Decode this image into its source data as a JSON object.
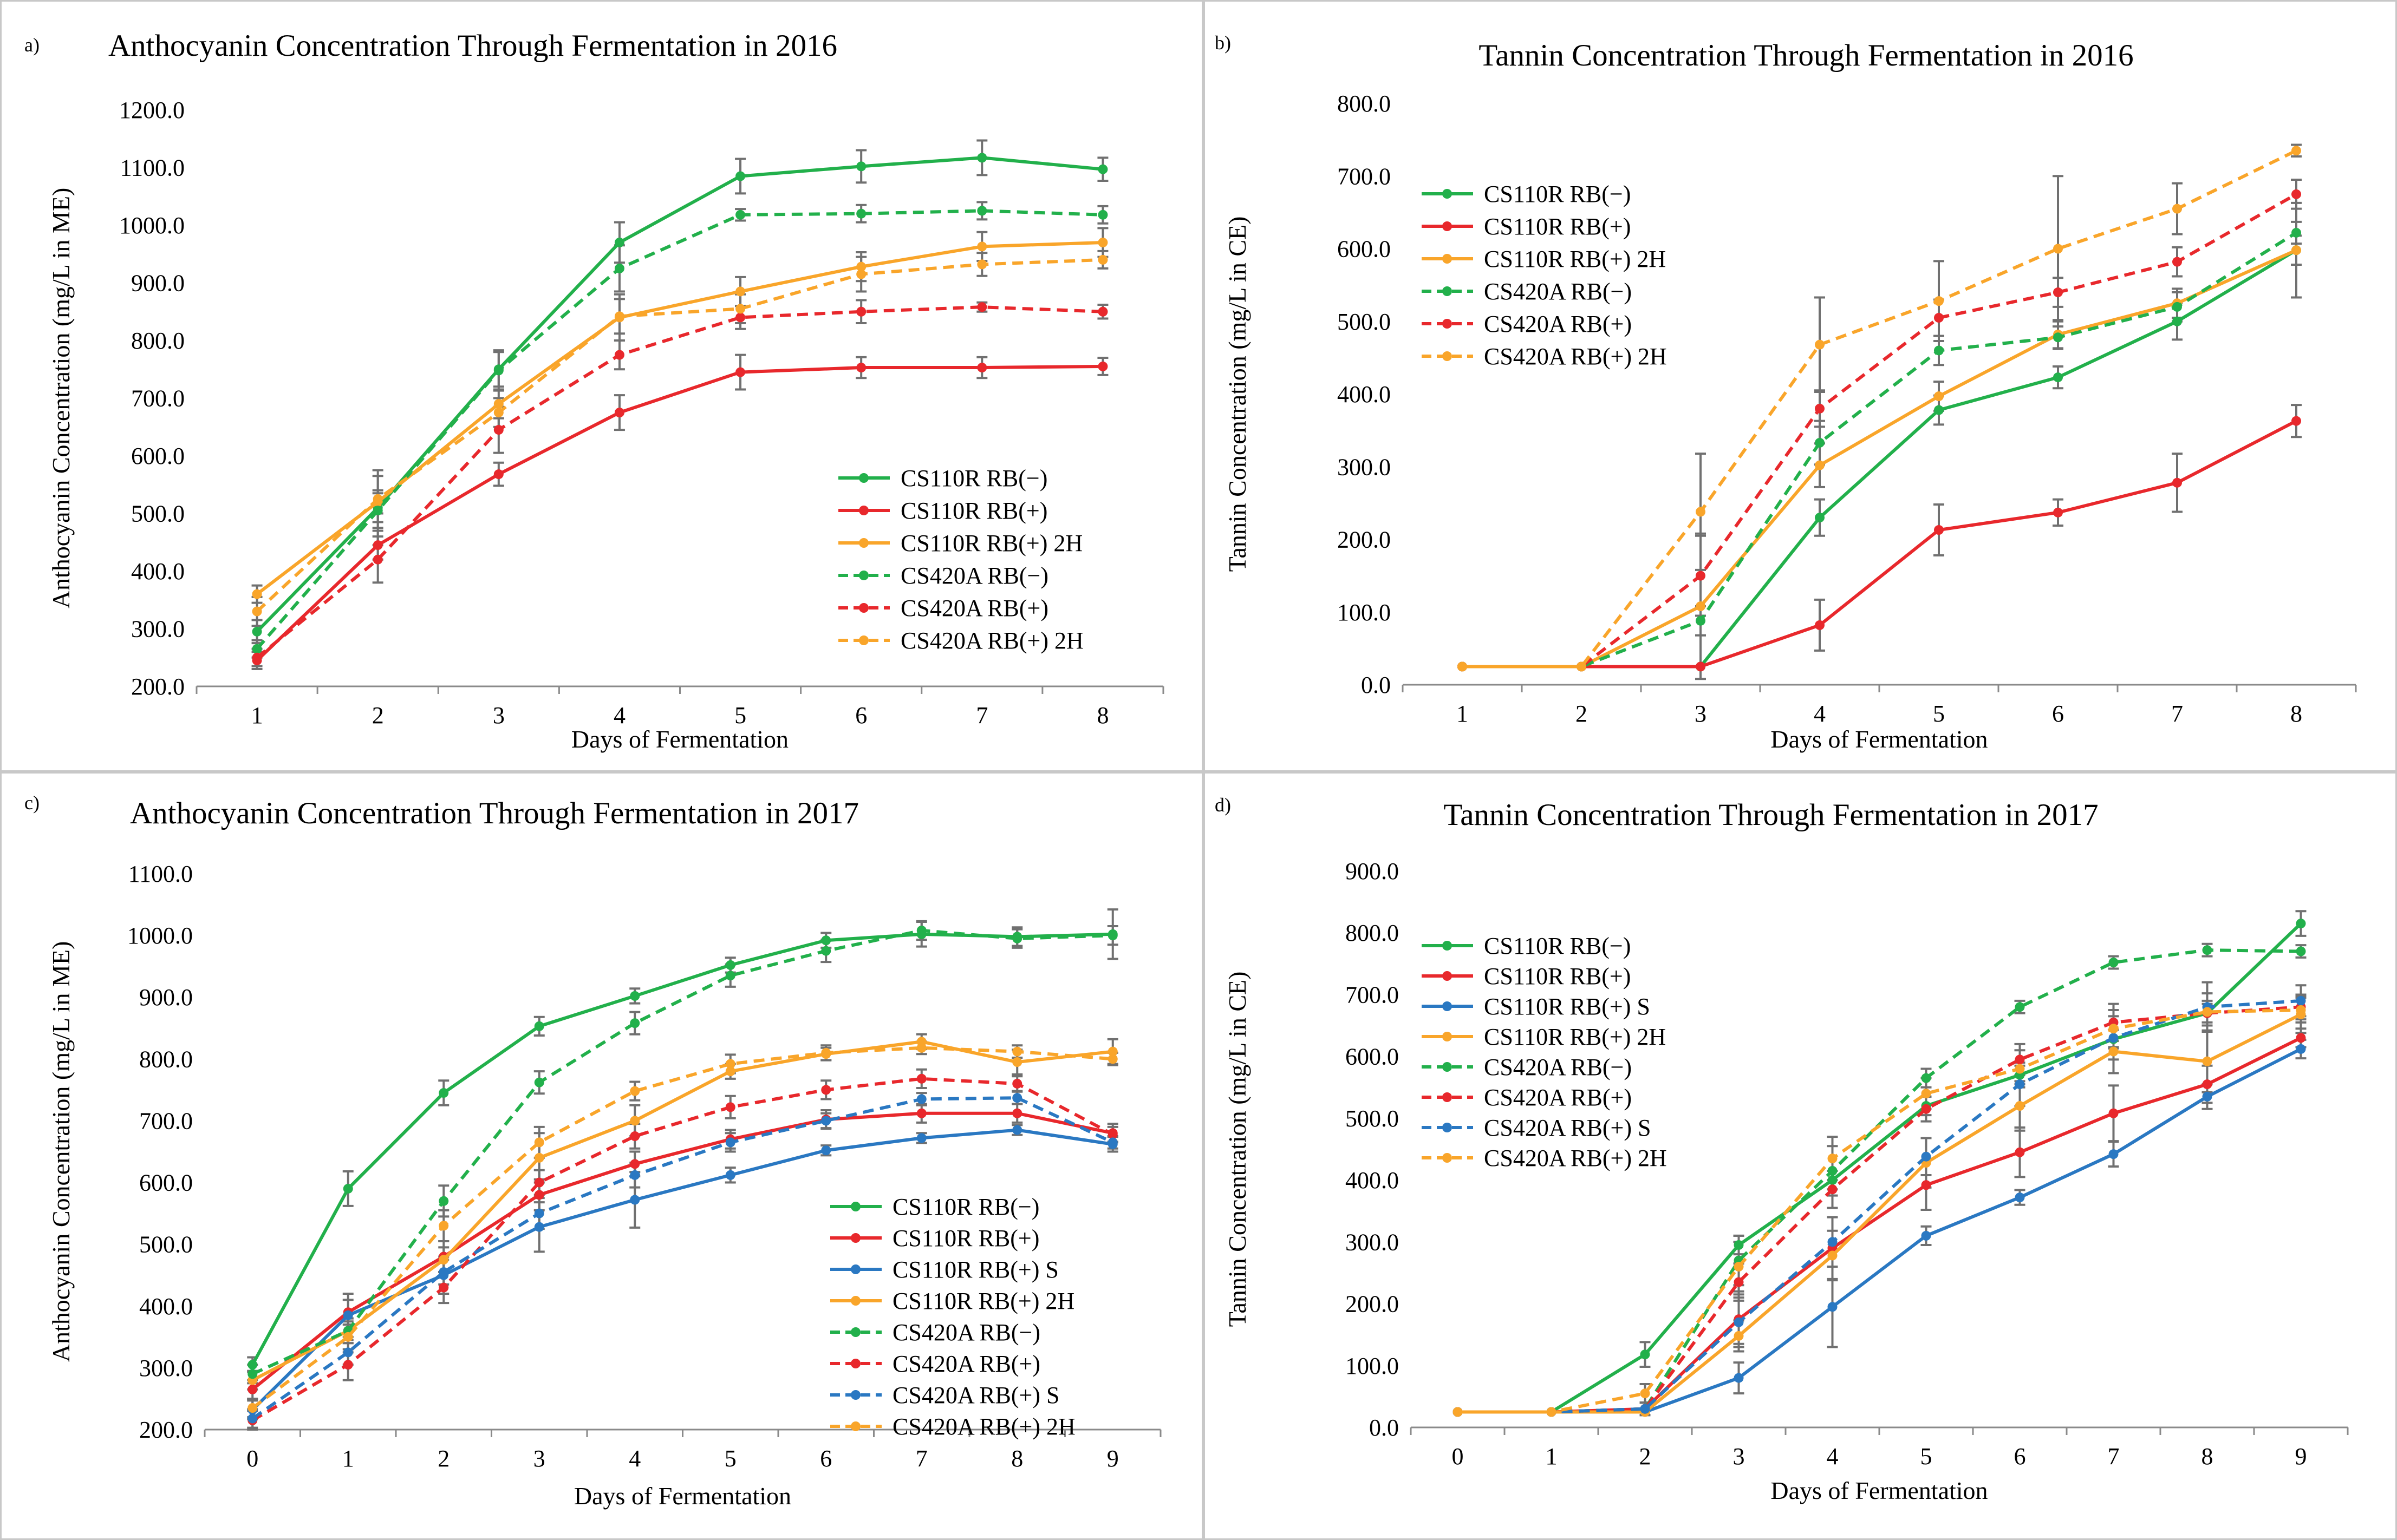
{
  "series_styles": {
    "CS110R RB(−)": {
      "color": "#22b04b",
      "dash": false
    },
    "CS110R RB(+)": {
      "color": "#e8282c",
      "dash": false
    },
    "CS110R RB(+) S": {
      "color": "#2a78c2",
      "dash": false
    },
    "CS110R RB(+) 2H": {
      "color": "#f9a52a",
      "dash": false
    },
    "CS420A RB(−)": {
      "color": "#22b04b",
      "dash": true
    },
    "CS420A RB(+)": {
      "color": "#e8282c",
      "dash": true
    },
    "CS420A RB(+) S": {
      "color": "#2a78c2",
      "dash": true
    },
    "CS420A RB(+) 2H": {
      "color": "#f9a52a",
      "dash": true
    }
  },
  "chart_data": [
    {
      "panel": "a)",
      "type": "line",
      "title": "Anthocyanin Concentration Through Fermentation in 2016",
      "xlabel": "Days of Fermentation",
      "ylabel": "Anthocyanin Concentration  (mg/L in ME)",
      "x": [
        1,
        2,
        3,
        4,
        5,
        6,
        7,
        8
      ],
      "ylim": [
        200,
        1200
      ],
      "yticks": [
        "200.0",
        "300.0",
        "400.0",
        "500.0",
        "600.0",
        "700.0",
        "800.0",
        "900.0",
        "1000.0",
        "1100.0",
        "1200.0"
      ],
      "legend_position": "lower-right",
      "series": [
        {
          "name": "CS110R RB(−)",
          "values": [
            295,
            510,
            750,
            970,
            1085,
            1102,
            1117,
            1097
          ],
          "errors": [
            20,
            25,
            30,
            35,
            30,
            28,
            30,
            20
          ]
        },
        {
          "name": "CS110R RB(+)",
          "values": [
            245,
            445,
            568,
            675,
            745,
            753,
            753,
            755
          ],
          "errors": [
            15,
            25,
            20,
            30,
            30,
            18,
            18,
            15
          ]
        },
        {
          "name": "CS110R RB(+) 2H",
          "values": [
            360,
            520,
            690,
            840,
            885,
            928,
            963,
            970
          ],
          "errors": [
            15,
            20,
            25,
            40,
            25,
            25,
            25,
            25
          ]
        },
        {
          "name": "CS420A RB(−)",
          "values": [
            265,
            505,
            748,
            925,
            1018,
            1020,
            1025,
            1018
          ],
          "errors": [
            15,
            60,
            35,
            40,
            10,
            15,
            15,
            15
          ]
        },
        {
          "name": "CS420A RB(+)",
          "values": [
            250,
            420,
            645,
            775,
            840,
            850,
            858,
            850
          ],
          "errors": [
            15,
            40,
            40,
            25,
            20,
            20,
            8,
            12
          ]
        },
        {
          "name": "CS420A RB(+) 2H",
          "values": [
            330,
            525,
            675,
            842,
            855,
            915,
            932,
            940
          ],
          "errors": [
            25,
            50,
            25,
            30,
            25,
            30,
            20,
            15
          ]
        }
      ]
    },
    {
      "panel": "b)",
      "type": "line",
      "title": "Tannin Concentration Through Fermentation in 2016",
      "xlabel": "Days of Fermentation",
      "ylabel": "Tannin Concentration  (mg/L in CE)",
      "x": [
        1,
        2,
        3,
        4,
        5,
        6,
        7,
        8
      ],
      "ylim": [
        0,
        800
      ],
      "yticks": [
        "0.0",
        "100.0",
        "200.0",
        "300.0",
        "400.0",
        "500.0",
        "600.0",
        "700.0",
        "800.0"
      ],
      "legend_position": "top-left",
      "series": [
        {
          "name": "CS110R RB(−)",
          "values": [
            25,
            25,
            25,
            230,
            378,
            423,
            500,
            598
          ],
          "errors": [
            0,
            0,
            0,
            25,
            20,
            15,
            25,
            65
          ]
        },
        {
          "name": "CS110R RB(+)",
          "values": [
            25,
            25,
            25,
            82,
            213,
            237,
            278,
            363
          ],
          "errors": [
            0,
            0,
            0,
            35,
            35,
            18,
            40,
            22
          ]
        },
        {
          "name": "CS110R RB(+) 2H",
          "values": [
            25,
            25,
            108,
            302,
            397,
            482,
            525,
            598
          ],
          "errors": [
            0,
            0,
            100,
            30,
            20,
            20,
            20,
            20
          ]
        },
        {
          "name": "CS420A RB(−)",
          "values": [
            25,
            25,
            88,
            333,
            460,
            478,
            520,
            622
          ],
          "errors": [
            0,
            0,
            20,
            30,
            20,
            15,
            20,
            15
          ]
        },
        {
          "name": "CS420A RB(+)",
          "values": [
            25,
            25,
            150,
            380,
            505,
            540,
            582,
            675
          ],
          "errors": [
            0,
            0,
            55,
            25,
            25,
            20,
            20,
            20
          ]
        },
        {
          "name": "CS420A RB(+) 2H",
          "values": [
            25,
            25,
            238,
            468,
            528,
            600,
            655,
            735
          ],
          "errors": [
            0,
            0,
            80,
            65,
            55,
            100,
            35,
            8
          ]
        }
      ]
    },
    {
      "panel": "c)",
      "type": "line",
      "title": "Anthocyanin Concentration Through Fermentation in 2017",
      "xlabel": "Days of Fermentation",
      "ylabel": "Anthocyanin Concentration  (mg/L in ME)",
      "x": [
        0,
        1,
        2,
        3,
        4,
        5,
        6,
        7,
        8,
        9
      ],
      "ylim": [
        200,
        1100
      ],
      "yticks": [
        "200.0",
        "300.0",
        "400.0",
        "500.0",
        "600.0",
        "700.0",
        "800.0",
        "900.0",
        "1000.0",
        "1100.0"
      ],
      "legend_position": "lower-right",
      "series": [
        {
          "name": "CS110R RB(−)",
          "values": [
            305,
            590,
            745,
            853,
            902,
            952,
            992,
            1002,
            998,
            1002
          ],
          "errors": [
            12,
            28,
            20,
            15,
            12,
            12,
            12,
            20,
            15,
            40
          ]
        },
        {
          "name": "CS110R RB(+)",
          "values": [
            265,
            390,
            480,
            580,
            630,
            670,
            702,
            712,
            712,
            680
          ],
          "errors": [
            15,
            20,
            25,
            25,
            20,
            15,
            15,
            15,
            15,
            15
          ]
        },
        {
          "name": "CS110R RB(+) S",
          "values": [
            232,
            385,
            450,
            528,
            572,
            612,
            652,
            672,
            685,
            662
          ],
          "errors": [
            15,
            35,
            30,
            40,
            45,
            12,
            8,
            8,
            8,
            12
          ]
        },
        {
          "name": "CS110R RB(+) 2H",
          "values": [
            280,
            360,
            475,
            640,
            700,
            780,
            808,
            828,
            795,
            812
          ],
          "errors": [
            15,
            20,
            20,
            40,
            25,
            12,
            10,
            12,
            20,
            20
          ]
        },
        {
          "name": "CS420A RB(−)",
          "values": [
            290,
            360,
            570,
            762,
            858,
            935,
            975,
            1008,
            995,
            1000
          ],
          "errors": [
            15,
            20,
            25,
            18,
            18,
            18,
            18,
            15,
            15,
            15
          ]
        },
        {
          "name": "CS420A RB(+)",
          "values": [
            215,
            305,
            430,
            600,
            675,
            722,
            750,
            768,
            760,
            678
          ],
          "errors": [
            15,
            25,
            25,
            20,
            20,
            18,
            15,
            15,
            12,
            12
          ]
        },
        {
          "name": "CS420A RB(+) S",
          "values": [
            218,
            325,
            455,
            550,
            612,
            665,
            700,
            735,
            737,
            665
          ],
          "errors": [
            15,
            20,
            20,
            25,
            20,
            15,
            12,
            10,
            10,
            10
          ]
        },
        {
          "name": "CS420A RB(+) 2H",
          "values": [
            235,
            350,
            530,
            665,
            748,
            792,
            810,
            818,
            812,
            800
          ],
          "errors": [
            15,
            25,
            25,
            25,
            15,
            15,
            12,
            10,
            10,
            10
          ]
        }
      ]
    },
    {
      "panel": "d)",
      "type": "line",
      "title": "Tannin Concentration Through Fermentation in 2017",
      "xlabel": "Days of Fermentation",
      "ylabel": "Tannin Concentration  (mg/L in CE)",
      "x": [
        0,
        1,
        2,
        3,
        4,
        5,
        6,
        7,
        8,
        9
      ],
      "ylim": [
        0,
        900
      ],
      "yticks": [
        "0.0",
        "100.0",
        "200.0",
        "300.0",
        "400.0",
        "500.0",
        "600.0",
        "700.0",
        "800.0",
        "900.0"
      ],
      "legend_position": "top-left",
      "series": [
        {
          "name": "CS110R RB(−)",
          "values": [
            25,
            25,
            118,
            295,
            400,
            520,
            570,
            628,
            670,
            815
          ],
          "errors": [
            0,
            0,
            20,
            15,
            15,
            15,
            15,
            15,
            15,
            20
          ]
        },
        {
          "name": "CS110R RB(+)",
          "values": [
            25,
            25,
            30,
            175,
            290,
            392,
            445,
            508,
            555,
            630
          ],
          "errors": [
            0,
            0,
            10,
            40,
            50,
            40,
            40,
            45,
            30,
            15
          ]
        },
        {
          "name": "CS110R RB(+) S",
          "values": [
            25,
            25,
            25,
            80,
            195,
            310,
            372,
            442,
            535,
            612
          ],
          "errors": [
            0,
            0,
            5,
            25,
            65,
            15,
            12,
            20,
            20,
            15
          ]
        },
        {
          "name": "CS110R RB(+) 2H",
          "values": [
            25,
            25,
            25,
            148,
            278,
            428,
            520,
            608,
            592,
            668
          ],
          "errors": [
            0,
            0,
            5,
            25,
            40,
            40,
            40,
            35,
            50,
            30
          ]
        },
        {
          "name": "CS420A RB(−)",
          "values": [
            25,
            25,
            30,
            270,
            415,
            565,
            680,
            752,
            772,
            770
          ],
          "errors": [
            0,
            0,
            10,
            40,
            40,
            15,
            10,
            10,
            10,
            10
          ]
        },
        {
          "name": "CS420A RB(+)",
          "values": [
            25,
            25,
            30,
            235,
            385,
            515,
            595,
            655,
            670,
            680
          ],
          "errors": [
            0,
            0,
            10,
            30,
            30,
            20,
            25,
            30,
            20,
            20
          ]
        },
        {
          "name": "CS420A RB(+) S",
          "values": [
            25,
            25,
            30,
            170,
            300,
            438,
            555,
            630,
            680,
            690
          ],
          "errors": [
            0,
            0,
            10,
            40,
            40,
            30,
            35,
            35,
            40,
            25
          ]
        },
        {
          "name": "CS420A RB(+) 2H",
          "values": [
            25,
            25,
            55,
            260,
            435,
            540,
            580,
            645,
            672,
            675
          ],
          "errors": [
            0,
            0,
            15,
            40,
            35,
            25,
            30,
            30,
            30,
            20
          ]
        }
      ]
    }
  ]
}
